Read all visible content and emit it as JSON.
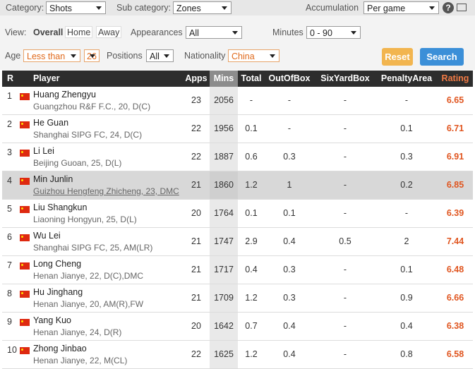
{
  "filters": {
    "category": {
      "label": "Category:",
      "value": "Shots"
    },
    "sub_category": {
      "label": "Sub category:",
      "value": "Zones"
    },
    "accumulation": {
      "label": "Accumulation",
      "value": "Per game"
    },
    "help_icon": "?",
    "view": {
      "label": "View:",
      "options": [
        "Overall",
        "Home",
        "Away"
      ]
    },
    "appearances": {
      "label": "Appearances",
      "value": "All"
    },
    "minutes": {
      "label": "Minutes",
      "value": "0 - 90"
    },
    "age": {
      "label": "Age",
      "operator": "Less than",
      "value": "26"
    },
    "positions": {
      "label": "Positions",
      "value": "All"
    },
    "nationality": {
      "label": "Nationality",
      "value": "China"
    },
    "buttons": {
      "reset": "Reset",
      "search": "Search"
    }
  },
  "table": {
    "columns": [
      "R",
      "Player",
      "Apps",
      "Mins",
      "Total",
      "OutOfBox",
      "SixYardBox",
      "PenaltyArea",
      "Rating"
    ],
    "rows": [
      {
        "rank": 1,
        "name": "Huang Zhengyu",
        "info": "Guangzhou R&F F.C., 20, D(C)",
        "apps": 23,
        "mins": 2056,
        "total": "-",
        "out_of_box": "-",
        "six_yard_box": "-",
        "penalty_area": "-",
        "rating": 6.65
      },
      {
        "rank": 2,
        "name": "He Guan",
        "info": "Shanghai SIPG FC, 24, D(C)",
        "apps": 22,
        "mins": 1956,
        "total": 0.1,
        "out_of_box": "-",
        "six_yard_box": "-",
        "penalty_area": 0.1,
        "rating": 6.71
      },
      {
        "rank": 3,
        "name": "Li Lei",
        "info": "Beijing Guoan, 25, D(L)",
        "apps": 22,
        "mins": 1887,
        "total": 0.6,
        "out_of_box": 0.3,
        "six_yard_box": "-",
        "penalty_area": 0.3,
        "rating": 6.91
      },
      {
        "rank": 4,
        "name": "Min Junlin",
        "info": "Guizhou Hengfeng Zhicheng, 23, DMC",
        "apps": 21,
        "mins": 1860,
        "total": 1.2,
        "out_of_box": 1,
        "six_yard_box": "-",
        "penalty_area": 0.2,
        "rating": 6.85
      },
      {
        "rank": 5,
        "name": "Liu Shangkun",
        "info": "Liaoning Hongyun, 25, D(L)",
        "apps": 20,
        "mins": 1764,
        "total": 0.1,
        "out_of_box": 0.1,
        "six_yard_box": "-",
        "penalty_area": "-",
        "rating": 6.39
      },
      {
        "rank": 6,
        "name": "Wu Lei",
        "info": "Shanghai SIPG FC, 25, AM(LR)",
        "apps": 21,
        "mins": 1747,
        "total": 2.9,
        "out_of_box": 0.4,
        "six_yard_box": 0.5,
        "penalty_area": 2,
        "rating": 7.44
      },
      {
        "rank": 7,
        "name": "Long Cheng",
        "info": "Henan Jianye, 22, D(C),DMC",
        "apps": 21,
        "mins": 1717,
        "total": 0.4,
        "out_of_box": 0.3,
        "six_yard_box": "-",
        "penalty_area": 0.1,
        "rating": 6.48
      },
      {
        "rank": 8,
        "name": "Hu Jinghang",
        "info": "Henan Jianye, 20, AM(R),FW",
        "apps": 21,
        "mins": 1709,
        "total": 1.2,
        "out_of_box": 0.3,
        "six_yard_box": "-",
        "penalty_area": 0.9,
        "rating": 6.66
      },
      {
        "rank": 9,
        "name": "Yang Kuo",
        "info": "Henan Jianye, 24, D(R)",
        "apps": 20,
        "mins": 1642,
        "total": 0.7,
        "out_of_box": 0.4,
        "six_yard_box": "-",
        "penalty_area": 0.4,
        "rating": 6.38
      },
      {
        "rank": 10,
        "name": "Zhong Jinbao",
        "info": "Henan Jianye, 22, M(CL)",
        "apps": 22,
        "mins": 1625,
        "total": 1.2,
        "out_of_box": 0.4,
        "six_yard_box": "-",
        "penalty_area": 0.8,
        "rating": 6.58
      }
    ]
  }
}
